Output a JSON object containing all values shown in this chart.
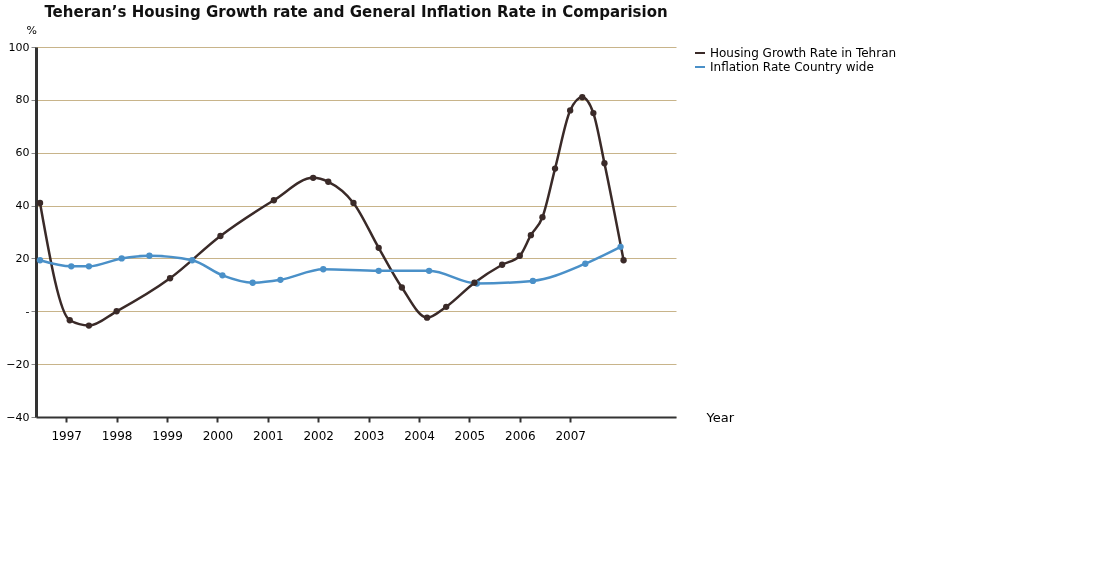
{
  "chart_data": {
    "type": "line",
    "title": "Teheran’s Housing Growth rate and General Inflation Rate in Comparision",
    "xlabel": "Year",
    "ylabel": "%",
    "xlim": [
      1996.4,
      2009.1
    ],
    "xticks": [
      1997,
      1998,
      1999,
      2000,
      2001,
      2002,
      2003,
      2004,
      2005,
      2006,
      2007
    ],
    "ylim": [
      -40,
      100
    ],
    "yticks": [
      -40,
      -20,
      {
        "value": 0,
        "label": "-"
      },
      20,
      40,
      60,
      80,
      100
    ],
    "grid": "y",
    "legend": "right",
    "marker": "circle",
    "line_style": "solid",
    "series": [
      {
        "name": "Housing Growth Rate in Tehran",
        "color": "#3a2a28",
        "x": [
          1996.48,
          1997.07,
          1997.45,
          1998.0,
          1999.06,
          2000.06,
          2001.12,
          2001.9,
          2002.2,
          2002.7,
          2003.2,
          2003.66,
          2004.16,
          2004.54,
          2005.1,
          2005.65,
          2006.0,
          2006.22,
          2006.45,
          2006.7,
          2007.0,
          2007.24,
          2007.46,
          2007.68,
          2008.06
        ],
        "values": [
          41,
          -3.4,
          -5.4,
          0,
          12.5,
          28.5,
          42,
          50.5,
          49,
          41,
          24,
          9,
          -2.4,
          1.7,
          10.8,
          17.6,
          21,
          28.8,
          35.6,
          54,
          76,
          81,
          75,
          56,
          19.3
        ]
      },
      {
        "name": "Inflation Rate Country wide",
        "color": "#4a90c8",
        "x": [
          1996.48,
          1997.1,
          1997.45,
          1998.1,
          1998.65,
          1999.5,
          2000.1,
          2000.7,
          2001.25,
          2002.1,
          2003.2,
          2004.2,
          2005.15,
          2006.26,
          2007.3,
          2008.0
        ],
        "values": [
          19.3,
          17,
          17,
          20,
          21,
          19.3,
          13.6,
          10.8,
          11.9,
          15.9,
          15.3,
          15.3,
          10.5,
          11.5,
          18,
          24.4
        ]
      }
    ]
  }
}
